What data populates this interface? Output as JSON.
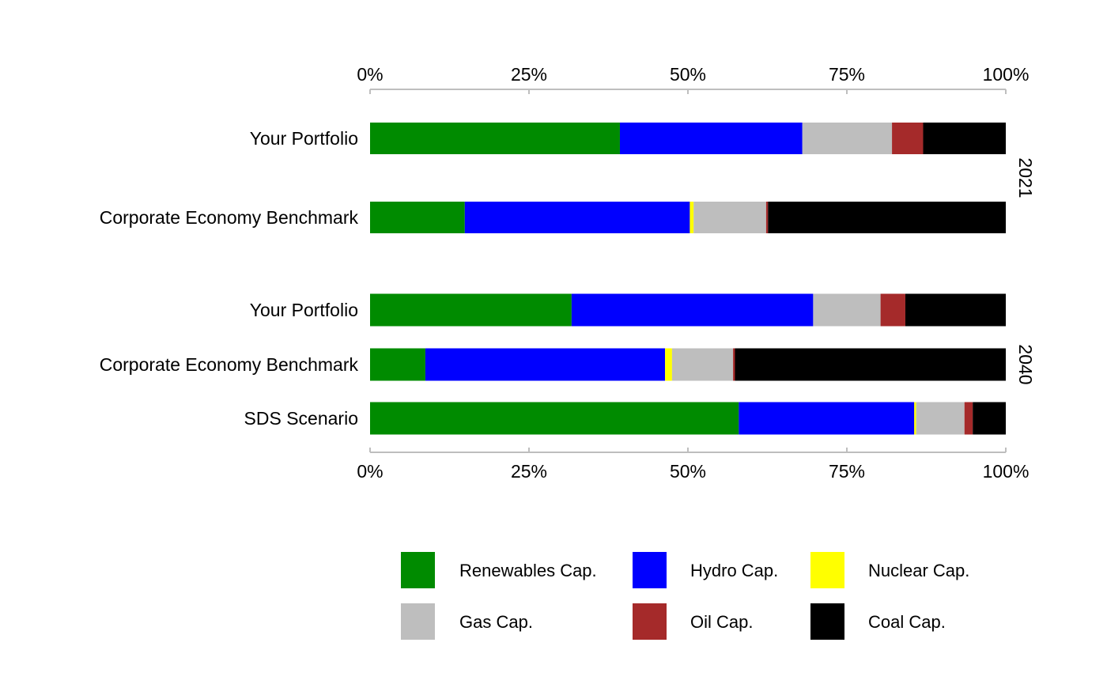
{
  "chart_data": {
    "type": "bar",
    "orientation": "horizontal",
    "stacked": "percent",
    "xlim": [
      0,
      100
    ],
    "tick_labels": [
      "0%",
      "25%",
      "50%",
      "75%",
      "100%"
    ],
    "tick_values": [
      0,
      25,
      50,
      75,
      100
    ],
    "legend_position": "bottom",
    "series": [
      {
        "name": "Renewables Cap.",
        "color": "#008b00"
      },
      {
        "name": "Hydro Cap.",
        "color": "#0000ff"
      },
      {
        "name": "Nuclear Cap.",
        "color": "#ffff00"
      },
      {
        "name": "Gas Cap.",
        "color": "#bebebe"
      },
      {
        "name": "Oil Cap.",
        "color": "#a52a2a"
      },
      {
        "name": "Coal Cap.",
        "color": "#000000"
      }
    ],
    "panels": [
      {
        "facet": "2021",
        "bars": [
          {
            "label": "Your Portfolio",
            "values": [
              39.3,
              28.7,
              0,
              14.1,
              4.9,
              13.0
            ]
          },
          {
            "label": "Corporate Economy Benchmark",
            "values": [
              14.9,
              35.4,
              0.6,
              11.4,
              0.3,
              37.4
            ]
          }
        ]
      },
      {
        "facet": "2040",
        "bars": [
          {
            "label": "Your Portfolio",
            "values": [
              31.7,
              38.0,
              0,
              10.6,
              3.9,
              15.8
            ]
          },
          {
            "label": "Corporate Economy Benchmark",
            "values": [
              8.7,
              37.7,
              1.1,
              9.6,
              0.3,
              42.6
            ]
          },
          {
            "label": "SDS Scenario",
            "values": [
              58.0,
              27.6,
              0.3,
              7.6,
              1.3,
              5.2
            ]
          }
        ]
      }
    ]
  }
}
